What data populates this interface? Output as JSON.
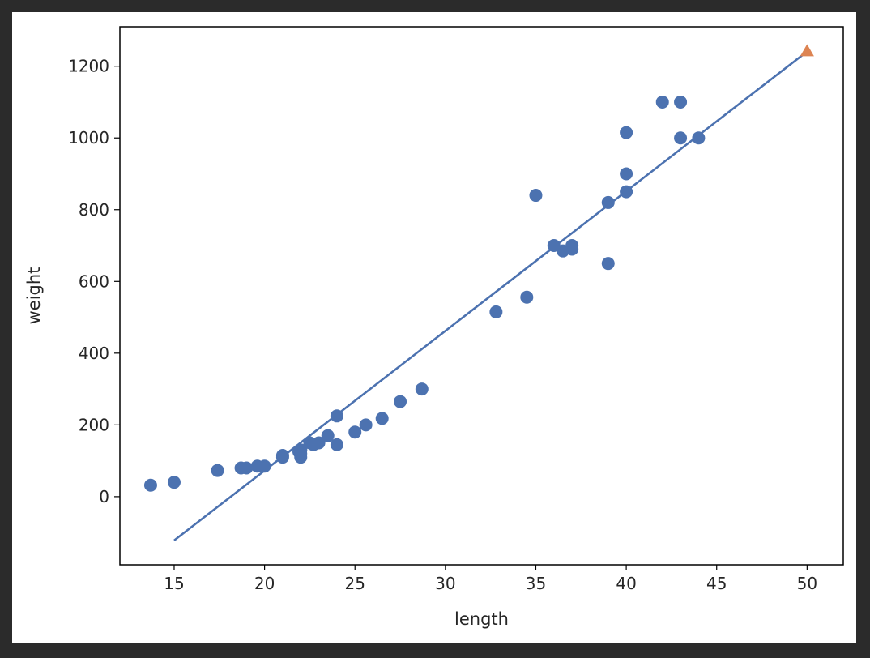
{
  "chart_data": {
    "type": "scatter",
    "title": "",
    "xlabel": "length",
    "ylabel": "weight",
    "xlim": [
      12,
      52
    ],
    "ylim": [
      -190,
      1310
    ],
    "grid": false,
    "xticks": [
      15,
      20,
      25,
      30,
      35,
      40,
      45,
      50
    ],
    "yticks": [
      0,
      200,
      400,
      600,
      800,
      1000,
      1200
    ],
    "colors": {
      "points": "#4c72b0",
      "line": "#4c72b0",
      "prediction": "#dd8452"
    },
    "series": [
      {
        "kind": "scatter",
        "marker": "circle",
        "points": [
          [
            13.7,
            32
          ],
          [
            15.0,
            40
          ],
          [
            17.4,
            73
          ],
          [
            18.7,
            80
          ],
          [
            19.0,
            80
          ],
          [
            19.6,
            85
          ],
          [
            20.0,
            85
          ],
          [
            21.0,
            110
          ],
          [
            21.0,
            115
          ],
          [
            21.9,
            125
          ],
          [
            22.0,
            130
          ],
          [
            22.0,
            120
          ],
          [
            22.0,
            110
          ],
          [
            22.0,
            130
          ],
          [
            22.5,
            150
          ],
          [
            22.7,
            145
          ],
          [
            23.0,
            150
          ],
          [
            23.5,
            170
          ],
          [
            24.0,
            145
          ],
          [
            24.0,
            225
          ],
          [
            25.0,
            180
          ],
          [
            25.6,
            200
          ],
          [
            26.5,
            218
          ],
          [
            27.5,
            265
          ],
          [
            28.7,
            300
          ],
          [
            32.8,
            515
          ],
          [
            34.5,
            556
          ],
          [
            35.0,
            840
          ],
          [
            36.0,
            700
          ],
          [
            36.5,
            685
          ],
          [
            37.0,
            700
          ],
          [
            37.0,
            690
          ],
          [
            39.0,
            820
          ],
          [
            39.0,
            650
          ],
          [
            40.0,
            900
          ],
          [
            40.0,
            850
          ],
          [
            40.0,
            1015
          ],
          [
            42.0,
            1100
          ],
          [
            43.0,
            1100
          ],
          [
            43.0,
            1000
          ],
          [
            44.0,
            1000
          ]
        ]
      },
      {
        "kind": "line",
        "points": [
          [
            15.0,
            -122
          ],
          [
            50.0,
            1241
          ]
        ]
      },
      {
        "kind": "scatter",
        "marker": "triangle",
        "points": [
          [
            50.0,
            1241
          ]
        ]
      }
    ]
  }
}
